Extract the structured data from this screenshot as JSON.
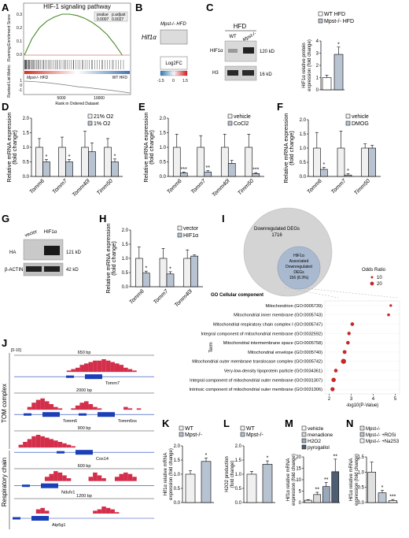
{
  "panels": [
    "A",
    "B",
    "C",
    "D",
    "E",
    "F",
    "G",
    "H",
    "I",
    "J",
    "K",
    "L",
    "M",
    "N"
  ],
  "A": {
    "title": "HIF-1 signaling pathway",
    "ylabel_top": "Running Enrichment Score",
    "ylabel_bottom": "Ranked List Metric",
    "xlabel": "Rank in Ordered Dataset",
    "stats_header": [
      "pvalue",
      "p.adjust"
    ],
    "stats_values": [
      "0.0007",
      "0.0027"
    ],
    "left_group": "Mpst-/- HFD",
    "right_group": "WT HFD",
    "yticks_top": [
      "0.3",
      "0.2",
      "0.1",
      "0.0"
    ],
    "yticks_bottom": [
      "1",
      "0",
      "-1"
    ],
    "xticks": [
      "5000",
      "10000"
    ]
  },
  "B": {
    "column": "Mpst-/- HFD",
    "row": "Hif1α",
    "legend_title": "Log2FC",
    "legend_ticks": [
      "-1.5",
      "0",
      "1.5"
    ]
  },
  "C": {
    "blot_title": "HFD",
    "lanes": [
      "WT",
      "Mpst-/-"
    ],
    "rows": [
      "HIF1α",
      "H3"
    ],
    "kd": [
      "120 kD",
      "16 kD"
    ],
    "legend": [
      "WT HFD",
      "Mpst-/- HFD"
    ],
    "ylabel": "HIF1α relative protein expression (fold change)",
    "yticks": [
      "0",
      "1",
      "2",
      "3",
      "4"
    ],
    "star": "*"
  },
  "D": {
    "ylabel": "Relative mRNA expression (fold change)",
    "yticks": [
      "0.0",
      "0.5",
      "1.0",
      "1.5",
      "2.0"
    ],
    "legend": [
      "21% O2",
      "1% O2"
    ],
    "star": [
      "*",
      "*",
      "",
      "*"
    ]
  },
  "E": {
    "ylabel": "Relative mRNA expression (fold change)",
    "yticks": [
      "0.0",
      "0.5",
      "1.0",
      "1.5",
      "2.0"
    ],
    "legend": [
      "vehicle",
      "CoCl2"
    ],
    "star": [
      "***",
      "**",
      "",
      "***"
    ]
  },
  "F": {
    "ylabel": "Relative mRNA expression (fold change)",
    "yticks": [
      "0.0",
      "0.5",
      "1.0",
      "1.5",
      "2.0"
    ],
    "legend": [
      "vehicle",
      "DMOG"
    ],
    "star": [
      "*",
      "*",
      ""
    ]
  },
  "G": {
    "lanes": [
      "vector",
      "HIF1α"
    ],
    "rows": [
      "HA",
      "β-ACTIN"
    ],
    "kd": [
      "121 kD",
      "42 kD"
    ]
  },
  "H": {
    "ylabel": "Relative mRNA expression (fold change)",
    "yticks": [
      "0.0",
      "0.5",
      "1.0",
      "1.5",
      "2.0"
    ],
    "legend": [
      "vector",
      "HIF1α"
    ],
    "star": [
      "*",
      "*",
      ""
    ]
  },
  "I": {
    "venn_outer_title": "Downregulated DEGs",
    "venn_outer_count": "1716",
    "venn_inner": [
      "HIF1α",
      "Associated",
      "Downregulated",
      "DEGs",
      "156 (8.3%)"
    ],
    "go_title": "GO Cellular component",
    "odds_title": "Odds Ratio",
    "odds_values": [
      "10",
      "20"
    ],
    "ylabel": "Term",
    "xlabel": "-log10(P-Value)",
    "xticks": [
      "2",
      "3",
      "4",
      "5"
    ]
  },
  "J": {
    "range": "[0-10]",
    "group1": "TOM complex",
    "group2": "Respiratory chain",
    "tracks": [
      {
        "bp": "650 bp",
        "genes": [
          "Tomm7"
        ]
      },
      {
        "bp": "2000 bp",
        "genes": [
          "Tomm6",
          "Tomm6os"
        ]
      },
      {
        "bp": "900 bp",
        "genes": [
          "Cox14"
        ]
      },
      {
        "bp": "600 bp",
        "genes": [
          "Ndufv1"
        ]
      },
      {
        "bp": "1200 bp",
        "genes": [
          "Atp5g1"
        ]
      }
    ]
  },
  "K": {
    "legend": [
      "WT",
      "Mpst-/-"
    ],
    "ylabel": "Hif1α relative mRNA expression (fold change)",
    "yticks": [
      "0.0",
      "0.5",
      "1.0",
      "1.5",
      "2.0"
    ],
    "star": "*"
  },
  "L": {
    "legend": [
      "WT",
      "Mpst-/-"
    ],
    "ylabel": "H2O2 production (fold change)",
    "yticks": [
      "0.0",
      "0.5",
      "1.0",
      "1.5",
      "2.0"
    ],
    "star": "*"
  },
  "M": {
    "legend": [
      "vehicle",
      "menadione",
      "H2O2",
      "pyrogallol"
    ],
    "ylabel": "Hif1α relative mRNA expression (fold change)",
    "yticks": [
      "0",
      "5",
      "10",
      "15",
      "20"
    ],
    "star": [
      "",
      "**",
      "**",
      "**"
    ]
  },
  "N": {
    "legend": [
      "Mpst-/-",
      "Mpst-/- +ROSi",
      "Mpst-/- +Na2S3"
    ],
    "ylabel": "Hif1α relative mRNA expression (fold change)",
    "yticks": [
      "0.0",
      "0.5",
      "1.0",
      "1.5"
    ],
    "star": [
      "",
      "*",
      "***"
    ]
  },
  "chart_data": [
    {
      "type": "line",
      "panel": "A",
      "title": "HIF-1 signaling pathway",
      "xlabel": "Rank in Ordered Dataset",
      "ylabel": "Running Enrichment Score",
      "x": [
        0,
        1000,
        2000,
        3000,
        4000,
        5000,
        6000,
        7000,
        8000,
        9000,
        10000,
        11000,
        12000,
        13000
      ],
      "y": [
        0.0,
        0.12,
        0.2,
        0.25,
        0.28,
        0.3,
        0.3,
        0.29,
        0.27,
        0.24,
        0.2,
        0.15,
        0.08,
        0.0
      ],
      "ylim": [
        -0.05,
        0.35
      ],
      "xlim": [
        0,
        14000
      ]
    },
    {
      "type": "bar",
      "panel": "C",
      "categories": [
        "WT HFD",
        "Mpst-/- HFD"
      ],
      "values": [
        1.0,
        2.9
      ],
      "errors": [
        0.2,
        0.6
      ],
      "ylim": [
        0,
        4
      ],
      "ylabel": "HIF1α relative protein expression (fold change)"
    },
    {
      "type": "bar",
      "panel": "D",
      "categories": [
        "Tomm6",
        "Tomm7",
        "Tomm40l",
        "Timm50"
      ],
      "series": [
        {
          "name": "21% O2",
          "values": [
            1.0,
            1.0,
            1.0,
            1.0
          ],
          "errors": [
            0.3,
            0.35,
            0.55,
            0.3
          ]
        },
        {
          "name": "1% O2",
          "values": [
            0.5,
            0.5,
            0.85,
            0.5
          ],
          "errors": [
            0.08,
            0.08,
            0.3,
            0.1
          ]
        }
      ],
      "ylim": [
        0,
        2
      ],
      "ylabel": "Relative mRNA expression (fold change)"
    },
    {
      "type": "bar",
      "panel": "E",
      "categories": [
        "Tomm6",
        "Tomm7",
        "Tomm40l",
        "Timm50"
      ],
      "series": [
        {
          "name": "vehicle",
          "values": [
            1.0,
            1.0,
            1.0,
            1.0
          ],
          "errors": [
            0.45,
            0.4,
            0.45,
            0.45
          ]
        },
        {
          "name": "CoCl2",
          "values": [
            0.12,
            0.15,
            0.45,
            0.1
          ],
          "errors": [
            0.03,
            0.05,
            0.1,
            0.03
          ]
        }
      ],
      "ylim": [
        0,
        2
      ],
      "ylabel": "Relative mRNA expression (fold change)"
    },
    {
      "type": "bar",
      "panel": "F",
      "categories": [
        "Tomm6",
        "Tomm7",
        "Timm50"
      ],
      "series": [
        {
          "name": "vehicle",
          "values": [
            1.0,
            1.0,
            1.0
          ],
          "errors": [
            0.55,
            0.6,
            0.15
          ]
        },
        {
          "name": "DMOG",
          "values": [
            0.25,
            0.05,
            1.0
          ],
          "errors": [
            0.07,
            0.05,
            0.1
          ]
        }
      ],
      "ylim": [
        0,
        2
      ],
      "ylabel": "Relative mRNA expression (fold change)"
    },
    {
      "type": "bar",
      "panel": "H",
      "categories": [
        "Tomm6",
        "Tomm7",
        "Tomm40l"
      ],
      "series": [
        {
          "name": "vector",
          "values": [
            1.0,
            1.0,
            1.0
          ],
          "errors": [
            0.4,
            0.35,
            0.3
          ]
        },
        {
          "name": "HIF1α",
          "values": [
            0.48,
            0.45,
            1.08
          ],
          "errors": [
            0.07,
            0.08,
            0.04
          ]
        }
      ],
      "ylim": [
        0,
        2
      ],
      "ylabel": "Relative mRNA expression (fold change)"
    },
    {
      "type": "scatter",
      "panel": "I",
      "title": "GO Cellular component",
      "xlabel": "-log10(P-Value)",
      "ylabel": "Term",
      "categories": [
        "Mitochondrion (GO:0005739)",
        "Mitochondrial inner membrane (GO:0005743)",
        "Mitochondrial respiratory chain complex I (GO:0005747)",
        "Integral component of mitochondrial membrane (GO:0032592)",
        "Mitochondrial intermembrane space (GO:0005758)",
        "Mitochondrial envelope (GO:0005740)",
        "Mitochondrial outer membrane translocase complex (GO:0005742)",
        "Very-low-density lipoprotein particle (GO:0034361)",
        "Integral component of mitochondrial outer membrane (GO:0031307)",
        "Intrinsic component of mitochondrial outer membrane (GO:0031306)"
      ],
      "x": [
        4.8,
        4.7,
        3.05,
        2.9,
        2.85,
        2.7,
        2.65,
        2.3,
        2.2,
        2.15
      ],
      "odds_ratio": [
        6,
        7,
        12,
        11,
        12,
        13,
        20,
        12,
        16,
        15
      ],
      "xlim": [
        1.8,
        5.2
      ]
    },
    {
      "type": "bar",
      "panel": "K",
      "categories": [
        "WT",
        "Mpst-/-"
      ],
      "values": [
        1.0,
        1.45
      ],
      "errors": [
        0.12,
        0.12
      ],
      "ylim": [
        0,
        2
      ],
      "ylabel": "Hif1α relative mRNA expression (fold change)"
    },
    {
      "type": "bar",
      "panel": "L",
      "categories": [
        "WT",
        "Mpst-/-"
      ],
      "values": [
        1.0,
        1.35
      ],
      "errors": [
        0.1,
        0.12
      ],
      "ylim": [
        0,
        2
      ],
      "ylabel": "H2O2 production (fold change)"
    },
    {
      "type": "bar",
      "panel": "M",
      "categories": [
        "vehicle",
        "menadione",
        "H2O2",
        "pyrogallol"
      ],
      "values": [
        1.0,
        3.5,
        7.0,
        13.5
      ],
      "errors": [
        0.3,
        1.0,
        1.8,
        5.5
      ],
      "ylim": [
        0,
        20
      ],
      "ylabel": "Hif1α relative mRNA expression (fold change)"
    },
    {
      "type": "bar",
      "panel": "N",
      "categories": [
        "Mpst-/-",
        "Mpst-/- +ROSi",
        "Mpst-/- +Na2S3"
      ],
      "values": [
        1.0,
        0.32,
        0.07
      ],
      "errors": [
        0.33,
        0.08,
        0.03
      ],
      "ylim": [
        0,
        1.5
      ],
      "ylabel": "Hif1α relative mRNA expression (fold change)"
    }
  ]
}
